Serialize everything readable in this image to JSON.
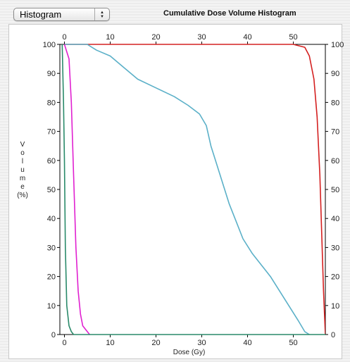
{
  "toolbar": {
    "view_select_value": "Histogram"
  },
  "chart_data": {
    "type": "line",
    "title": "Cumulative Dose Volume Histogram",
    "xlabel": "Dose (Gy)",
    "ylabel": "Volume (%)",
    "ylabel_lines": [
      "V",
      "o",
      "l",
      "u",
      "m",
      "e",
      "(%)"
    ],
    "xlim": [
      -1,
      57
    ],
    "ylim": [
      0,
      100
    ],
    "x_ticks": [
      0,
      10,
      20,
      30,
      40,
      50
    ],
    "y_ticks": [
      0,
      10,
      20,
      30,
      40,
      50,
      60,
      70,
      80,
      90,
      100
    ],
    "grid": false,
    "legend": "none",
    "series": [
      {
        "color": "#d42020",
        "points": [
          [
            0,
            100
          ],
          [
            50,
            100
          ],
          [
            52.5,
            99
          ],
          [
            53.5,
            96
          ],
          [
            54.5,
            88
          ],
          [
            55.2,
            75
          ],
          [
            55.8,
            55
          ],
          [
            56.2,
            35
          ],
          [
            56.6,
            15
          ],
          [
            57,
            0
          ]
        ]
      },
      {
        "color": "#5bb0c8",
        "points": [
          [
            0,
            100
          ],
          [
            5,
            100
          ],
          [
            7,
            98
          ],
          [
            10,
            96
          ],
          [
            13,
            92
          ],
          [
            16,
            88
          ],
          [
            20,
            85
          ],
          [
            24,
            82
          ],
          [
            27,
            79
          ],
          [
            29.5,
            76
          ],
          [
            31,
            72
          ],
          [
            32,
            65
          ],
          [
            33,
            60
          ],
          [
            34,
            55
          ],
          [
            35,
            50
          ],
          [
            36,
            45
          ],
          [
            37.5,
            39
          ],
          [
            39,
            33
          ],
          [
            41,
            28
          ],
          [
            43,
            24
          ],
          [
            45,
            20
          ],
          [
            47,
            15
          ],
          [
            49,
            10
          ],
          [
            51,
            5
          ],
          [
            52.5,
            1
          ],
          [
            53.5,
            0
          ]
        ]
      },
      {
        "color": "#e020d0",
        "points": [
          [
            0,
            100
          ],
          [
            1,
            95
          ],
          [
            1.5,
            80
          ],
          [
            2,
            55
          ],
          [
            2.5,
            30
          ],
          [
            3,
            15
          ],
          [
            3.5,
            7
          ],
          [
            4,
            3
          ],
          [
            5,
            1
          ],
          [
            5.5,
            0
          ]
        ]
      },
      {
        "color": "#2a8a6a",
        "points": [
          [
            -0.5,
            100
          ],
          [
            -0.2,
            80
          ],
          [
            0,
            60
          ],
          [
            0.2,
            30
          ],
          [
            0.5,
            10
          ],
          [
            1,
            3
          ],
          [
            1.5,
            1
          ],
          [
            2,
            0
          ],
          [
            57,
            0
          ]
        ]
      }
    ]
  }
}
